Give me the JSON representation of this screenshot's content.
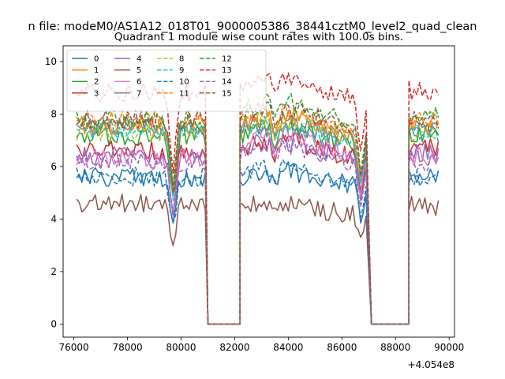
{
  "figure": {
    "suptitle": "n file: modeM0/AS1A12_018T01_9000005386_38441cztM0_level2_quad_clean"
  },
  "chart_data": {
    "type": "line",
    "title": "Quadrant 1 module wise count rates with 100.0s bins.",
    "xlabel": "",
    "ylabel": "",
    "x_offset_label": "+4.054e8",
    "xlim": [
      75600,
      90200
    ],
    "ylim": [
      -0.5,
      10.6
    ],
    "xticks": [
      76000,
      78000,
      80000,
      82000,
      84000,
      86000,
      88000,
      90000
    ],
    "xtick_labels": [
      "76000",
      "78000",
      "80000",
      "82000",
      "84000",
      "86000",
      "88000",
      "90000"
    ],
    "yticks": [
      0,
      2,
      4,
      6,
      8,
      10
    ],
    "ytick_labels": [
      "0",
      "2",
      "4",
      "6",
      "8",
      "10"
    ],
    "grid": false,
    "legend_position": "upper-left",
    "legend_columns": 4,
    "segments": [
      {
        "start": 76100,
        "end": 80900,
        "step": 100
      },
      {
        "start": 82200,
        "end": 86900,
        "step": 100
      },
      {
        "start": 88500,
        "end": 89600,
        "step": 100
      }
    ],
    "gaps": [
      {
        "start": 81000,
        "end": 82200
      },
      {
        "start": 87100,
        "end": 88500
      }
    ],
    "dips": [
      {
        "center": 79700,
        "depth": 0.35,
        "width": 150
      },
      {
        "center": 86700,
        "depth": 0.25,
        "width": 150
      },
      {
        "center": 83500,
        "depth": 0.08,
        "width": 150
      }
    ],
    "series": [
      {
        "name": "0",
        "color": "#1f77b4",
        "dash": "solid",
        "values": [
          5.6,
          5.6,
          5.7
        ]
      },
      {
        "name": "1",
        "color": "#ff7f0e",
        "dash": "solid",
        "values": [
          7.6,
          7.6,
          7.6
        ]
      },
      {
        "name": "2",
        "color": "#2ca02c",
        "dash": "solid",
        "values": [
          7.2,
          7.2,
          7.3
        ]
      },
      {
        "name": "3",
        "color": "#d62728",
        "dash": "solid",
        "values": [
          6.6,
          6.7,
          6.7
        ]
      },
      {
        "name": "4",
        "color": "#9467bd",
        "dash": "solid",
        "values": [
          6.4,
          6.7,
          6.5
        ]
      },
      {
        "name": "5",
        "color": "#8c564b",
        "dash": "solid",
        "values": [
          4.6,
          4.4,
          4.5
        ]
      },
      {
        "name": "6",
        "color": "#e377c2",
        "dash": "solid",
        "values": [
          6.3,
          6.9,
          6.4
        ]
      },
      {
        "name": "7",
        "color": "#7f7f7f",
        "dash": "solid",
        "values": [
          7.5,
          7.4,
          7.4
        ]
      },
      {
        "name": "8",
        "color": "#bcbd22",
        "dash": "dashed",
        "values": [
          7.3,
          7.5,
          7.3
        ]
      },
      {
        "name": "9",
        "color": "#17becf",
        "dash": "dashed",
        "values": [
          7.4,
          7.3,
          7.3
        ]
      },
      {
        "name": "10",
        "color": "#1f77b4",
        "dash": "dashed",
        "values": [
          5.6,
          5.7,
          5.6
        ]
      },
      {
        "name": "11",
        "color": "#ff7f0e",
        "dash": "dashed",
        "values": [
          7.8,
          7.7,
          7.7
        ]
      },
      {
        "name": "12",
        "color": "#2ca02c",
        "dash": "dashed",
        "values": [
          7.8,
          8.1,
          7.9
        ]
      },
      {
        "name": "13",
        "color": "#d62728",
        "dash": "dashed",
        "values": [
          8.8,
          9.0,
          8.9
        ]
      },
      {
        "name": "14",
        "color": "#9467bd",
        "dash": "dashed",
        "values": [
          6.2,
          6.5,
          6.2
        ]
      },
      {
        "name": "15",
        "color": "#8c564b",
        "dash": "dashed",
        "values": [
          7.8,
          7.9,
          7.8
        ]
      }
    ]
  }
}
